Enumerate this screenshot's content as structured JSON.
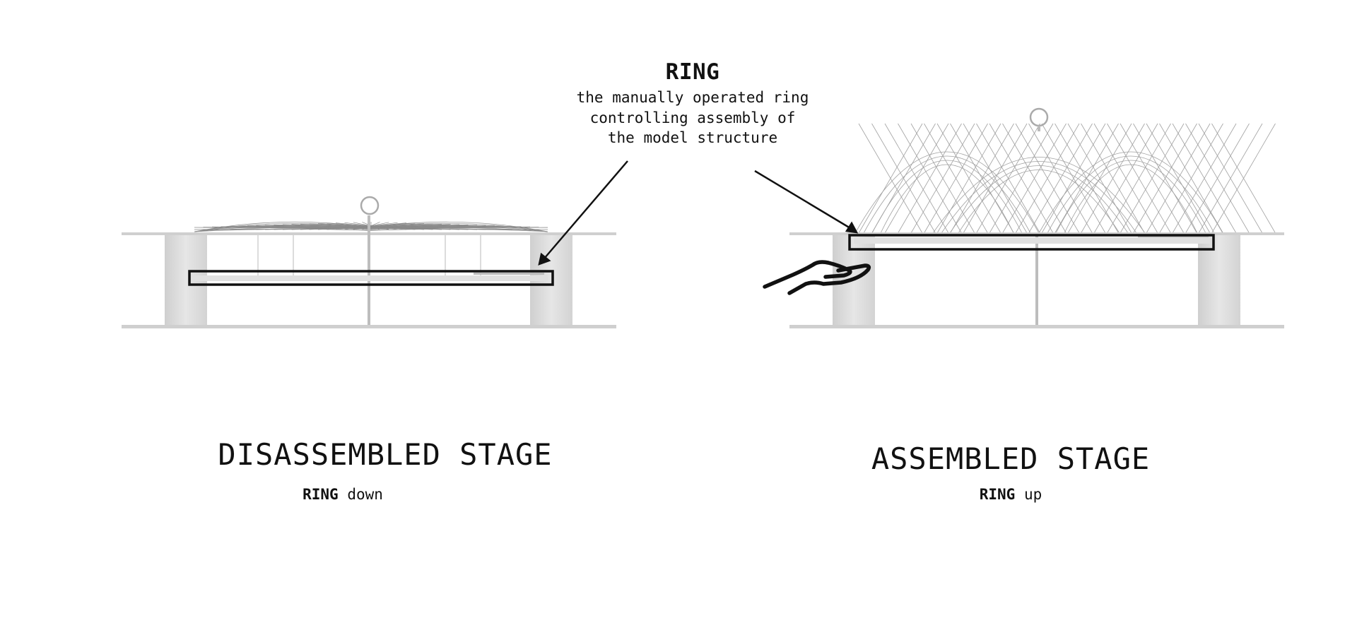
{
  "callout": {
    "title": "RING",
    "description_lines": [
      "the manually operated ring",
      "controlling assembly of",
      "the model structure"
    ]
  },
  "stages": {
    "left": {
      "title": "DISASSEMBLED STAGE",
      "ring_label": "RING",
      "state": "down"
    },
    "right": {
      "title": "ASSEMBLED STAGE",
      "ring_label": "RING",
      "state": "up"
    }
  },
  "icons": {
    "hand": "hand-icon"
  },
  "colors": {
    "line": "#111111",
    "panel": "#d9d9d9",
    "mesh": "#9a9a9a"
  }
}
